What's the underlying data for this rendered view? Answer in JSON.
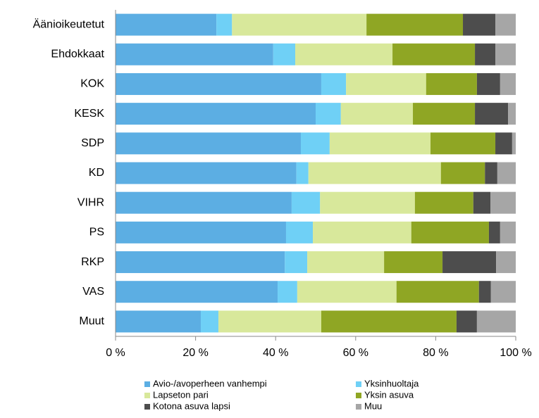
{
  "chart_data": {
    "type": "stacked_bar_horizontal",
    "categories": [
      "Äänioikeutetut",
      "Ehdokkaat",
      "KOK",
      "KESK",
      "SDP",
      "KD",
      "VIHR",
      "PS",
      "RKP",
      "VAS",
      "Muut"
    ],
    "series": [
      {
        "name": "Avio-/avoperheen vanhempi",
        "color": "#5caee3",
        "values": [
          25.2,
          39.4,
          51.4,
          50.0,
          46.3,
          45.2,
          44.0,
          42.6,
          42.3,
          40.5,
          21.3
        ]
      },
      {
        "name": "Yksinhuoltaja",
        "color": "#6fd0f6",
        "values": [
          3.9,
          5.5,
          6.2,
          6.3,
          7.2,
          3.0,
          7.1,
          6.7,
          5.6,
          4.9,
          4.4
        ]
      },
      {
        "name": "Lapseton pari",
        "color": "#d8e89b",
        "values": [
          33.6,
          24.3,
          20.0,
          18.0,
          25.2,
          33.1,
          23.7,
          24.6,
          19.2,
          24.8,
          25.7
        ]
      },
      {
        "name": "Yksin asuva",
        "color": "#8fa624",
        "values": [
          24.1,
          20.6,
          12.7,
          15.5,
          16.2,
          11.0,
          14.6,
          19.4,
          14.6,
          20.6,
          33.8
        ]
      },
      {
        "name": "Kotona asuva lapsi",
        "color": "#4d4d4d",
        "values": [
          8.1,
          5.1,
          5.8,
          8.3,
          4.2,
          3.1,
          4.3,
          2.8,
          13.4,
          3.0,
          5.1
        ]
      },
      {
        "name": "Muu",
        "color": "#a6a6a6",
        "values": [
          5.1,
          5.1,
          3.9,
          1.9,
          0.9,
          4.6,
          6.3,
          3.9,
          4.9,
          6.2,
          9.7
        ]
      }
    ],
    "xlim": [
      0,
      100
    ],
    "xticks": [
      {
        "value": 0,
        "label": "0 %"
      },
      {
        "value": 20,
        "label": "20 %"
      },
      {
        "value": 40,
        "label": "40 %"
      },
      {
        "value": 60,
        "label": "60 %"
      },
      {
        "value": 80,
        "label": "80 %"
      },
      {
        "value": 100,
        "label": "100 %"
      }
    ],
    "legend": "bottom"
  }
}
